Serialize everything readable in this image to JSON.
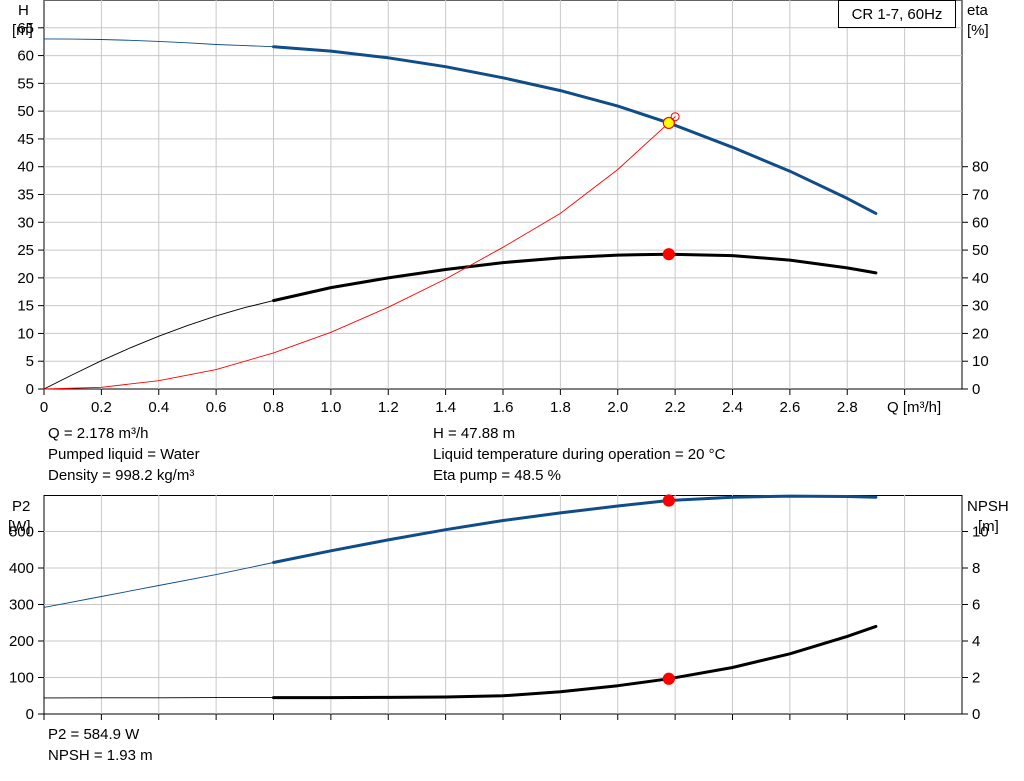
{
  "chart_data": [
    {
      "type": "line",
      "name": "performance",
      "title": "CR 1-7, 60Hz",
      "xlabel": "Q [m³/h]",
      "ylabel_left": [
        "H",
        "[m]"
      ],
      "ylabel_right": [
        "eta",
        "[%]"
      ],
      "xlim": [
        0,
        3.2
      ],
      "xticks": [
        "0",
        "0.2",
        "0.4",
        "0.6",
        "0.8",
        "1.0",
        "1.2",
        "1.4",
        "1.6",
        "1.8",
        "2.0",
        "2.2",
        "2.4",
        "2.6",
        "2.8"
      ],
      "ylim_left": [
        0,
        70
      ],
      "yticks_left": [
        "0",
        "5",
        "10",
        "15",
        "20",
        "25",
        "30",
        "35",
        "40",
        "45",
        "50",
        "55",
        "60",
        "65"
      ],
      "ylim_right": [
        0,
        140
      ],
      "yticks_right": [
        "0",
        "10",
        "20",
        "30",
        "40",
        "50",
        "60",
        "70",
        "80"
      ],
      "grid": true,
      "series": [
        {
          "axis": "left",
          "color": "#0f4c88",
          "thin_x": [
            0,
            0.1,
            0.2,
            0.3,
            0.4,
            0.5,
            0.6,
            0.7,
            0.8
          ],
          "thin_y": [
            63.0,
            62.97,
            62.9,
            62.75,
            62.55,
            62.3,
            62.0,
            61.8,
            61.6
          ],
          "x": [
            0.8,
            1.0,
            1.2,
            1.4,
            1.6,
            1.8,
            2.0,
            2.178,
            2.4,
            2.6,
            2.8,
            2.9
          ],
          "y": [
            61.6,
            60.8,
            59.6,
            58.0,
            56.0,
            53.7,
            50.9,
            47.88,
            43.5,
            39.2,
            34.3,
            31.6
          ]
        },
        {
          "axis": "right",
          "color": "#000000",
          "thin_x": [
            0,
            0.1,
            0.2,
            0.3,
            0.4,
            0.5,
            0.6,
            0.7,
            0.8
          ],
          "thin_y": [
            0,
            5.2,
            10.2,
            14.8,
            19.0,
            22.8,
            26.3,
            29.3,
            31.8
          ],
          "x": [
            0.8,
            1.0,
            1.2,
            1.4,
            1.6,
            1.8,
            2.0,
            2.178,
            2.4,
            2.6,
            2.8,
            2.9
          ],
          "y": [
            31.8,
            36.5,
            40.0,
            43.0,
            45.5,
            47.2,
            48.2,
            48.5,
            48.0,
            46.4,
            43.6,
            41.8
          ]
        },
        {
          "axis": "left",
          "color": "#ff0000",
          "x": [
            0,
            0.2,
            0.4,
            0.6,
            0.8,
            1.0,
            1.2,
            1.4,
            1.6,
            1.8,
            2.0,
            2.178,
            2.2
          ],
          "y": [
            0,
            0.3,
            1.5,
            3.5,
            6.5,
            10.2,
            14.7,
            19.8,
            25.5,
            31.6,
            39.5,
            47.88,
            49.0
          ]
        }
      ],
      "operating_points": [
        {
          "x": 2.178,
          "y": 47.88,
          "axis": "left",
          "fill": "#ffff00",
          "stroke": "#ff0000"
        },
        {
          "x": 2.178,
          "y": 48.5,
          "axis": "right",
          "fill": "#ff0000",
          "stroke": "#ff0000"
        }
      ],
      "info": {
        "left": [
          "Q = 2.178 m³/h",
          "Pumped liquid = Water",
          "Density = 998.2 kg/m³"
        ],
        "right": [
          "H = 47.88 m",
          "Liquid temperature during operation = 20 °C",
          "Eta pump = 48.5 %"
        ]
      }
    },
    {
      "type": "line",
      "name": "power-npsh",
      "ylabel_left": [
        "P2",
        "[W]"
      ],
      "ylabel_right": [
        "NPSH",
        "[m]"
      ],
      "xlim": [
        0,
        3.2
      ],
      "ylim_left": [
        0,
        600
      ],
      "yticks_left": [
        "0",
        "100",
        "200",
        "300",
        "400",
        "500"
      ],
      "ylim_right": [
        0,
        12
      ],
      "yticks_right": [
        "0",
        "2",
        "4",
        "6",
        "8",
        "10"
      ],
      "grid": true,
      "series": [
        {
          "axis": "left",
          "color": "#0f4c88",
          "thin_x": [
            0,
            0.2,
            0.4,
            0.6,
            0.8
          ],
          "thin_y": [
            292,
            322,
            352,
            382,
            415
          ],
          "x": [
            0.8,
            1.0,
            1.2,
            1.4,
            1.6,
            1.8,
            2.0,
            2.178,
            2.4,
            2.6,
            2.8,
            2.9
          ],
          "y": [
            415,
            447,
            477,
            505,
            530,
            551,
            570,
            584.9,
            594,
            597,
            596,
            594
          ]
        },
        {
          "axis": "right",
          "color": "#000000",
          "thin_x": [
            0,
            0.2,
            0.4,
            0.6,
            0.8
          ],
          "thin_y": [
            0.88,
            0.89,
            0.89,
            0.9,
            0.9
          ],
          "x": [
            0.8,
            1.0,
            1.2,
            1.4,
            1.6,
            1.8,
            2.0,
            2.178,
            2.4,
            2.6,
            2.8,
            2.9
          ],
          "y": [
            0.9,
            0.9,
            0.91,
            0.93,
            1.0,
            1.22,
            1.55,
            1.93,
            2.55,
            3.3,
            4.25,
            4.8
          ]
        }
      ],
      "operating_points": [
        {
          "x": 2.178,
          "y": 584.9,
          "axis": "left",
          "fill": "#ff0000",
          "stroke": "#ff0000"
        },
        {
          "x": 2.178,
          "y": 1.93,
          "axis": "right",
          "fill": "#ff0000",
          "stroke": "#ff0000"
        }
      ],
      "info": {
        "left": [
          "P2 = 584.9 W",
          "NPSH = 1.93 m"
        ]
      }
    }
  ]
}
